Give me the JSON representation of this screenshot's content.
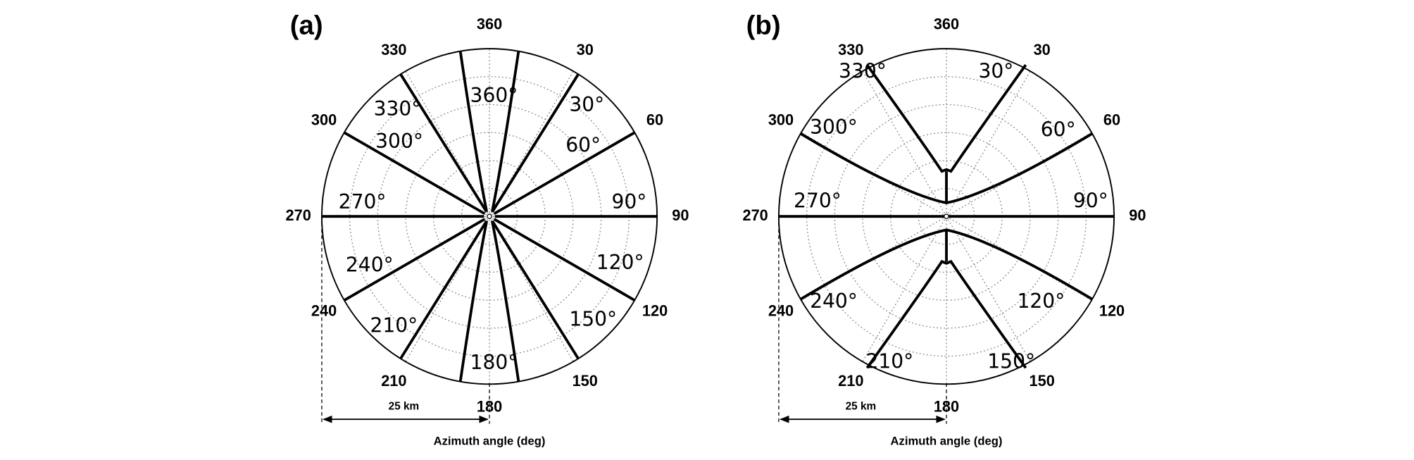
{
  "panels": [
    {
      "label": "(a)",
      "azimuth_ticks": [
        30,
        60,
        90,
        120,
        150,
        180,
        210,
        240,
        270,
        300,
        330,
        360
      ],
      "ray_labels": [
        "360°",
        "30°",
        "60°",
        "90°",
        "120°",
        "150°",
        "180°",
        "210°",
        "240°",
        "270°",
        "300°",
        "330°"
      ],
      "scale_label": "25 km",
      "axis_title": "Azimuth angle (deg)"
    },
    {
      "label": "(b)",
      "azimuth_ticks": [
        30,
        60,
        90,
        120,
        150,
        180,
        210,
        240,
        270,
        300,
        330,
        360
      ],
      "ray_labels": [
        "330°",
        "30°",
        "300°",
        "60°",
        "270°",
        "90°",
        "240°",
        "120°",
        "210°",
        "150°"
      ],
      "scale_label": "25 km",
      "axis_title": "Azimuth angle (deg)"
    }
  ]
}
